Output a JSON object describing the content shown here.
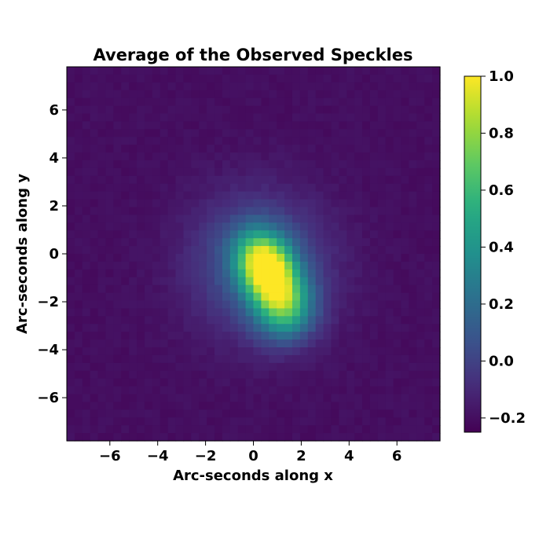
{
  "chart_data": {
    "type": "heatmap",
    "title": "Average of the Observed Speckles",
    "xlabel": "Arc-seconds along x",
    "ylabel": "Arc-seconds along y",
    "xlim": [
      -7.8,
      7.8
    ],
    "ylim": [
      -7.8,
      7.8
    ],
    "x_ticks": [
      -6,
      -4,
      -2,
      0,
      2,
      4,
      6
    ],
    "x_tick_labels": [
      "−6",
      "−4",
      "−2",
      "0",
      "2",
      "4",
      "6"
    ],
    "y_ticks": [
      -6,
      -4,
      -2,
      0,
      2,
      4,
      6
    ],
    "y_tick_labels": [
      "−6",
      "−4",
      "−2",
      "0",
      "2",
      "4",
      "6"
    ],
    "colormap": "viridis",
    "color_range": [
      -0.25,
      1.0
    ],
    "colorbar_ticks": [
      -0.2,
      0.0,
      0.2,
      0.4,
      0.6,
      0.8,
      1.0
    ],
    "colorbar_tick_labels": [
      "−0.2",
      "0.0",
      "0.2",
      "0.4",
      "0.6",
      "0.8",
      "1.0"
    ],
    "grid": false,
    "pixel_grid_size": 48,
    "background_level": -0.2,
    "blobs": [
      {
        "center_x": 0.55,
        "center_y": -0.6,
        "amplitude": 1.15,
        "sigma_x": 0.75,
        "sigma_y": 1.0,
        "rotation_deg": -25
      },
      {
        "center_x": 1.3,
        "center_y": -2.3,
        "amplitude": 0.62,
        "sigma_x": 0.85,
        "sigma_y": 0.9,
        "rotation_deg": 0
      },
      {
        "center_x": 0.3,
        "center_y": -0.5,
        "amplitude": 0.35,
        "sigma_x": 1.9,
        "sigma_y": 2.0,
        "rotation_deg": -30
      }
    ]
  }
}
